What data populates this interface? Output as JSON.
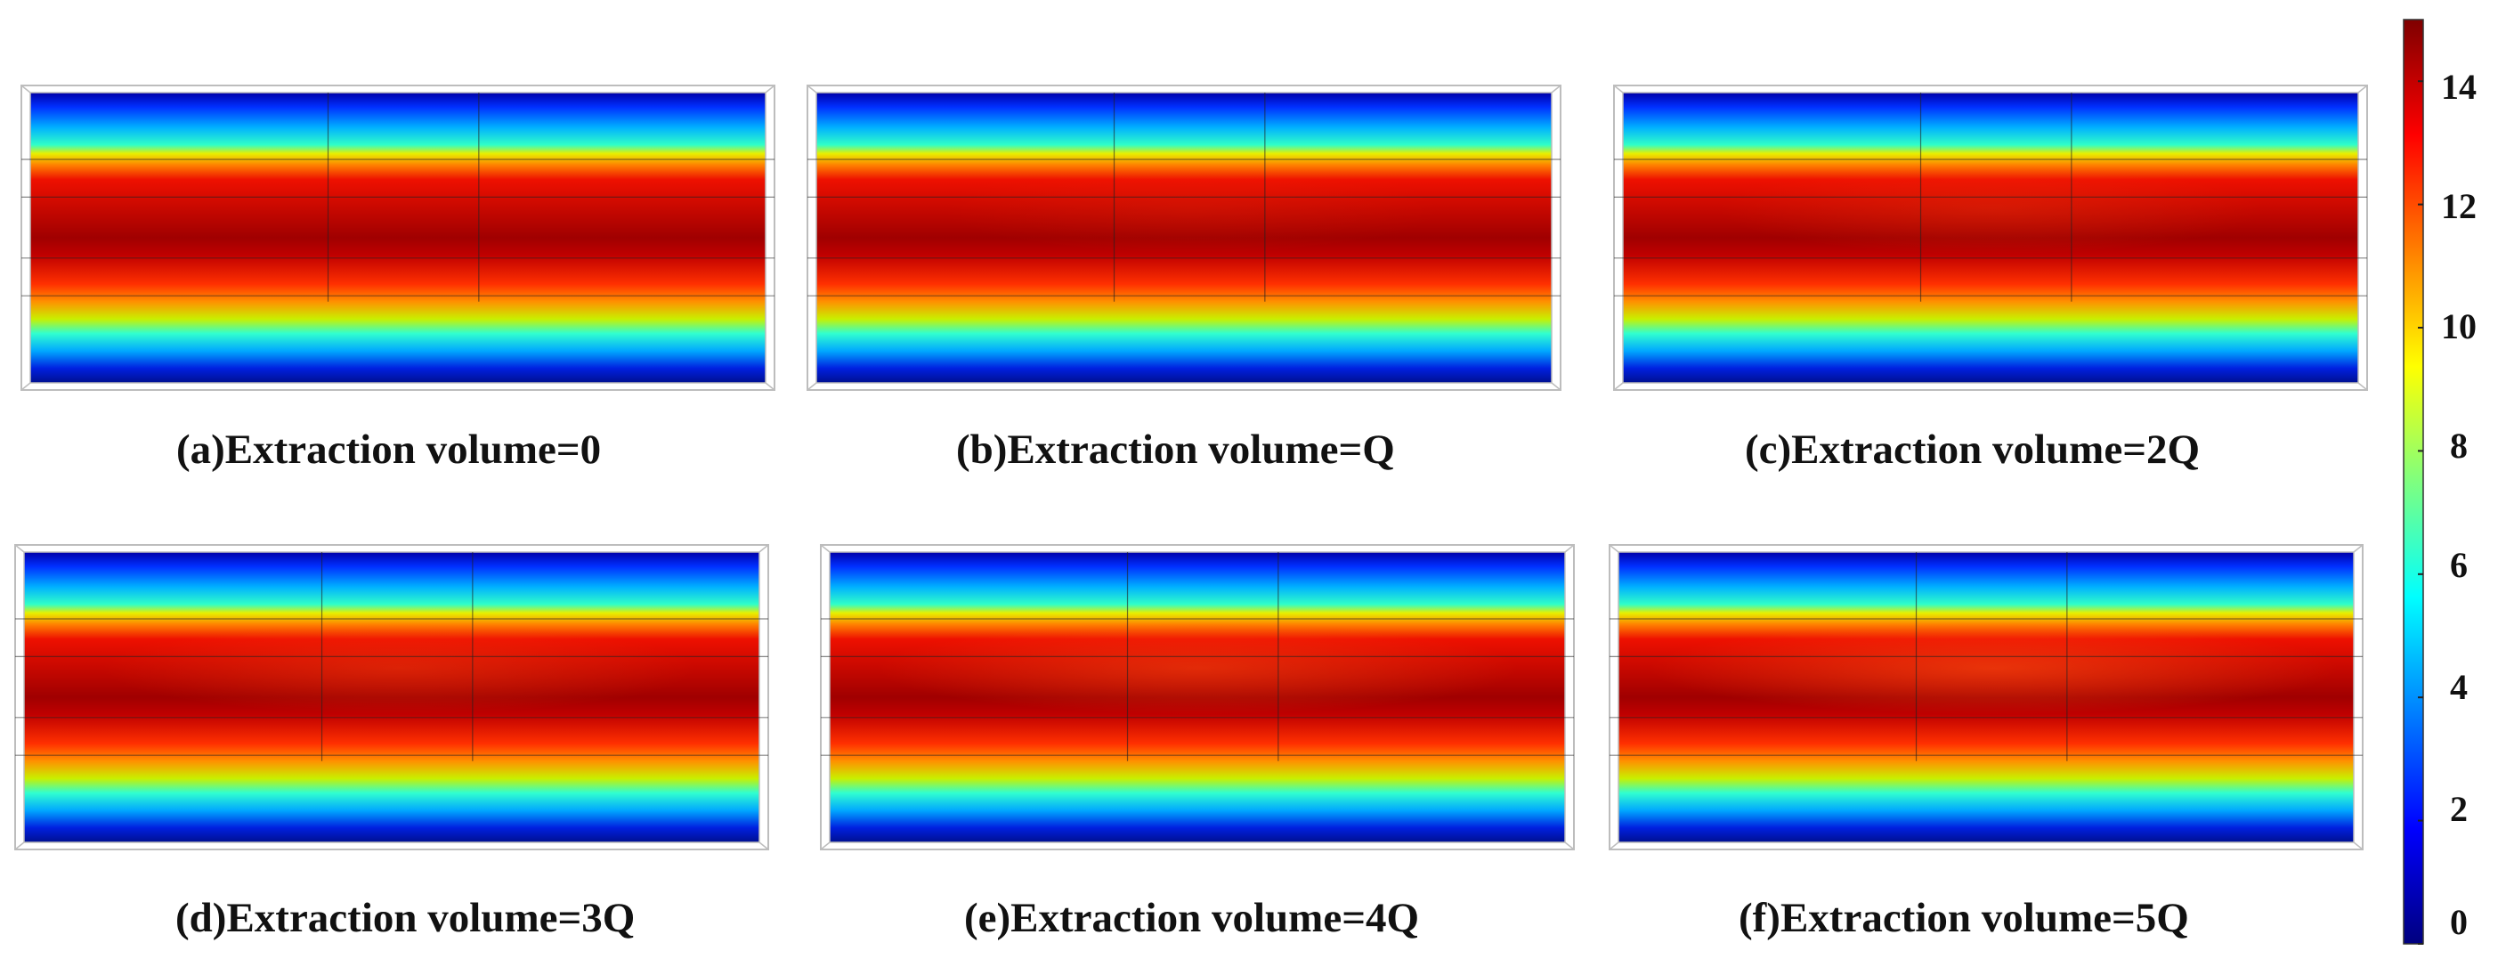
{
  "figure": {
    "panels": [
      {
        "id": "a",
        "caption": "(a)Extraction volume=0",
        "extraction_multiple": 0
      },
      {
        "id": "b",
        "caption": "(b)Extraction volume=Q",
        "extraction_multiple": 1
      },
      {
        "id": "c",
        "caption": "(c)Extraction volume=2Q",
        "extraction_multiple": 2
      },
      {
        "id": "d",
        "caption": "(d)Extraction volume=3Q",
        "extraction_multiple": 3
      },
      {
        "id": "e",
        "caption": "(e)Extraction volume=4Q",
        "extraction_multiple": 4
      },
      {
        "id": "f",
        "caption": "(f)Extraction volume=5Q",
        "extraction_multiple": 5
      }
    ],
    "colorbar": {
      "min": 0,
      "max": 15,
      "ticks": [
        "0",
        "2",
        "4",
        "6",
        "8",
        "10",
        "12",
        "14"
      ],
      "colormap": [
        "#00007f",
        "#0000ff",
        "#007fff",
        "#00ffff",
        "#7fff7f",
        "#ffff00",
        "#ff7f00",
        "#ff0000",
        "#7f0000"
      ]
    },
    "colors": {
      "frame": "#bdbdbd",
      "division_line": "#222222"
    }
  }
}
